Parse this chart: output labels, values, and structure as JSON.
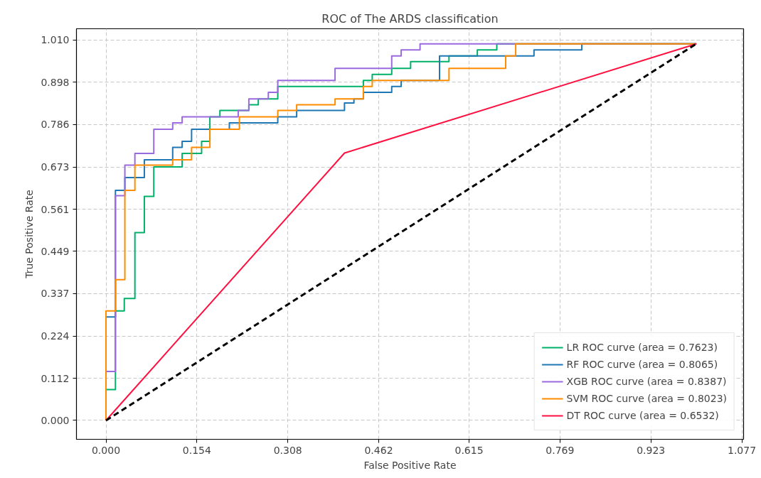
{
  "chart_data": {
    "type": "line",
    "title": "ROC of The ARDS classification",
    "xlabel": "False Positive Rate",
    "ylabel": "True Positive Rate",
    "xlim": [
      -0.05,
      1.08
    ],
    "ylim": [
      -0.05,
      1.04
    ],
    "xticks": [
      {
        "value": 0,
        "label": "0.000"
      },
      0.154,
      0.308,
      0.462,
      0.615,
      0.769,
      0.923,
      1.077
    ],
    "yticks": [
      {
        "value": 0,
        "label": "0.000"
      },
      0.112,
      0.224,
      0.337,
      0.449,
      0.561,
      0.673,
      0.786,
      0.898,
      {
        "value": 1.01,
        "label": "1.010"
      }
    ],
    "grid": true,
    "legend": "bottom right",
    "line_style": "solid",
    "marker": "none",
    "series": [
      {
        "name": "LR ROC curve (area = 0.7623)",
        "color": "#00b16a",
        "x": [
          0,
          0,
          0.016,
          0.016,
          0.031,
          0.031,
          0.049,
          0.049,
          0.065,
          0.065,
          0.081,
          0.081,
          0.129,
          0.129,
          0.162,
          0.162,
          0.176,
          0.176,
          0.193,
          0.193,
          0.242,
          0.242,
          0.258,
          0.258,
          0.291,
          0.291,
          0.436,
          0.436,
          0.451,
          0.451,
          0.484,
          0.484,
          0.516,
          0.516,
          0.581,
          0.581,
          0.629,
          0.629,
          0.662,
          0.662,
          1
        ],
        "values": [
          0,
          0.082,
          0.082,
          0.291,
          0.291,
          0.324,
          0.324,
          0.499,
          0.499,
          0.595,
          0.595,
          0.673,
          0.673,
          0.709,
          0.709,
          0.741,
          0.741,
          0.806,
          0.806,
          0.823,
          0.823,
          0.838,
          0.838,
          0.854,
          0.854,
          0.887,
          0.887,
          0.903,
          0.903,
          0.919,
          0.919,
          0.935,
          0.935,
          0.953,
          0.953,
          0.968,
          0.968,
          0.984,
          0.984,
          1.0,
          1
        ]
      },
      {
        "name": "RF ROC curve (area = 0.8065)",
        "color": "#1f77b4",
        "x": [
          0,
          0,
          0.016,
          0.016,
          0.032,
          0.032,
          0.065,
          0.065,
          0.113,
          0.113,
          0.129,
          0.129,
          0.145,
          0.145,
          0.209,
          0.209,
          0.291,
          0.291,
          0.323,
          0.323,
          0.404,
          0.404,
          0.42,
          0.42,
          0.436,
          0.436,
          0.484,
          0.484,
          0.5,
          0.5,
          0.565,
          0.565,
          0.725,
          0.725,
          0.806,
          0.806,
          1
        ],
        "values": [
          0,
          0.275,
          0.275,
          0.611,
          0.611,
          0.645,
          0.645,
          0.692,
          0.692,
          0.725,
          0.725,
          0.741,
          0.741,
          0.773,
          0.773,
          0.79,
          0.79,
          0.806,
          0.806,
          0.823,
          0.823,
          0.843,
          0.843,
          0.854,
          0.854,
          0.871,
          0.871,
          0.887,
          0.887,
          0.903,
          0.903,
          0.968,
          0.968,
          0.984,
          0.984,
          1.0,
          1
        ]
      },
      {
        "name": "XGB ROC curve (area = 0.8387)",
        "color": "#9b6ade",
        "x": [
          0,
          0,
          0.016,
          0.016,
          0.032,
          0.032,
          0.049,
          0.049,
          0.081,
          0.081,
          0.113,
          0.113,
          0.129,
          0.129,
          0.224,
          0.224,
          0.242,
          0.242,
          0.275,
          0.275,
          0.291,
          0.291,
          0.388,
          0.388,
          0.484,
          0.484,
          0.5,
          0.5,
          0.532,
          0.532,
          1
        ],
        "values": [
          0,
          0.13,
          0.13,
          0.597,
          0.597,
          0.678,
          0.678,
          0.709,
          0.709,
          0.773,
          0.773,
          0.79,
          0.79,
          0.806,
          0.806,
          0.823,
          0.823,
          0.854,
          0.854,
          0.871,
          0.871,
          0.903,
          0.903,
          0.935,
          0.935,
          0.968,
          0.968,
          0.984,
          0.984,
          1.0,
          1
        ]
      },
      {
        "name": "SVM ROC curve (area = 0.8023)",
        "color": "#ff8c00",
        "x": [
          0,
          0,
          0.016,
          0.016,
          0.032,
          0.032,
          0.049,
          0.049,
          0.113,
          0.113,
          0.145,
          0.145,
          0.176,
          0.176,
          0.226,
          0.226,
          0.291,
          0.291,
          0.323,
          0.323,
          0.388,
          0.388,
          0.436,
          0.436,
          0.451,
          0.451,
          0.581,
          0.581,
          0.677,
          0.677,
          0.694,
          0.694,
          1
        ],
        "values": [
          0,
          0.291,
          0.291,
          0.374,
          0.374,
          0.611,
          0.611,
          0.678,
          0.678,
          0.692,
          0.692,
          0.725,
          0.725,
          0.773,
          0.773,
          0.806,
          0.806,
          0.823,
          0.823,
          0.838,
          0.838,
          0.854,
          0.854,
          0.887,
          0.887,
          0.903,
          0.903,
          0.935,
          0.935,
          0.968,
          0.968,
          1.0,
          1
        ]
      },
      {
        "name": "DT ROC curve (area = 0.6532)",
        "color": "#ff1040",
        "x": [
          0,
          0.404,
          1
        ],
        "values": [
          0,
          0.71,
          1
        ]
      },
      {
        "color": "#000000",
        "line_style": "dashed",
        "x": [
          0,
          1
        ],
        "values": [
          0,
          1
        ]
      }
    ]
  }
}
